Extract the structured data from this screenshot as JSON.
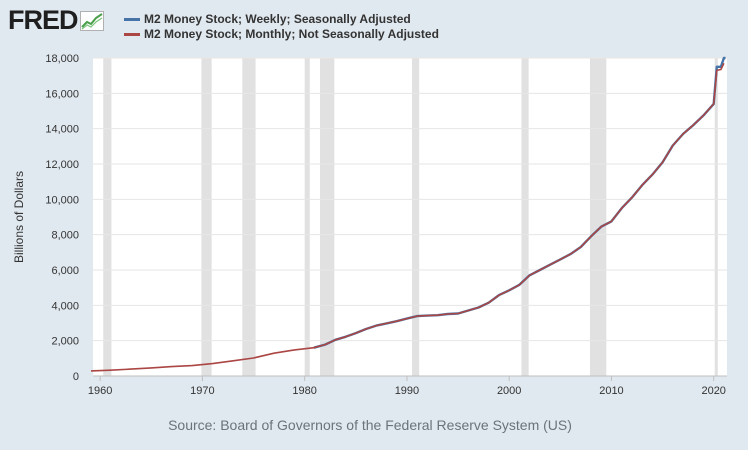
{
  "logo": {
    "text": "FRED",
    "icon": "trend-line-icon"
  },
  "chart_data": {
    "type": "line",
    "title": "",
    "xlabel": "",
    "ylabel": "Billions of Dollars",
    "xlim": [
      1959.3,
      2021.3
    ],
    "ylim": [
      0,
      18000
    ],
    "x_ticks": [
      1960,
      1970,
      1980,
      1990,
      2000,
      2010,
      2020
    ],
    "x_tick_labels": [
      "1960",
      "1970",
      "1980",
      "1990",
      "2000",
      "2010",
      "2020"
    ],
    "y_ticks": [
      0,
      2000,
      4000,
      6000,
      8000,
      10000,
      12000,
      14000,
      16000,
      18000
    ],
    "y_tick_labels": [
      "0",
      "2,000",
      "4,000",
      "6,000",
      "8,000",
      "10,000",
      "12,000",
      "14,000",
      "16,000",
      "18,000"
    ],
    "grid": true,
    "recessions": [
      [
        1960.3,
        1961.1
      ],
      [
        1969.9,
        1970.9
      ],
      [
        1973.9,
        1975.2
      ],
      [
        1980.0,
        1980.5
      ],
      [
        1981.5,
        1982.9
      ],
      [
        1990.5,
        1991.2
      ],
      [
        2001.2,
        2001.9
      ],
      [
        2007.9,
        2009.5
      ],
      [
        2020.1,
        2020.4
      ]
    ],
    "series": [
      {
        "name": "M2 Money Stock; Weekly; Seasonally Adjusted",
        "color": "#4572a7",
        "x": [
          1980.9,
          1982,
          1983,
          1984,
          1985,
          1986,
          1987,
          1988,
          1989,
          1990,
          1991,
          1992,
          1993,
          1994,
          1995,
          1996,
          1997,
          1998,
          1999,
          2000,
          2001,
          2002,
          2003,
          2004,
          2005,
          2006,
          2007,
          2008,
          2009,
          2010,
          2011,
          2012,
          2013,
          2014,
          2015,
          2016,
          2017,
          2018,
          2019,
          2020,
          2020.3,
          2020.7,
          2021,
          2021.15
        ],
        "y": [
          1600,
          1780,
          2050,
          2220,
          2430,
          2660,
          2850,
          2980,
          3100,
          3250,
          3390,
          3420,
          3440,
          3510,
          3540,
          3710,
          3880,
          4150,
          4580,
          4850,
          5160,
          5700,
          6000,
          6300,
          6600,
          6900,
          7300,
          7900,
          8450,
          8750,
          9500,
          10100,
          10800,
          11400,
          12100,
          13050,
          13700,
          14200,
          14750,
          15400,
          17500,
          17500,
          18100,
          18300
        ]
      },
      {
        "name": "M2 Money Stock; Monthly; Not Seasonally Adjusted",
        "color": "#aa4643",
        "x": [
          1959.1,
          1961,
          1963,
          1965,
          1967,
          1969,
          1971,
          1973,
          1975,
          1977,
          1979,
          1980.9,
          1982,
          1983,
          1984,
          1985,
          1986,
          1987,
          1988,
          1989,
          1990,
          1991,
          1992,
          1993,
          1994,
          1995,
          1996,
          1997,
          1998,
          1999,
          2000,
          2001,
          2002,
          2003,
          2004,
          2005,
          2006,
          2007,
          2008,
          2009,
          2010,
          2011,
          2012,
          2013,
          2014,
          2015,
          2016,
          2017,
          2018,
          2019,
          2020,
          2020.3,
          2020.7,
          2021
        ],
        "y": [
          290,
          330,
          390,
          460,
          530,
          590,
          700,
          860,
          1020,
          1290,
          1480,
          1600,
          1780,
          2050,
          2220,
          2430,
          2660,
          2850,
          2980,
          3100,
          3250,
          3390,
          3420,
          3440,
          3510,
          3540,
          3710,
          3880,
          4150,
          4580,
          4850,
          5160,
          5700,
          6000,
          6300,
          6600,
          6900,
          7300,
          7900,
          8450,
          8750,
          9500,
          10100,
          10800,
          11400,
          12100,
          13050,
          13700,
          14200,
          14750,
          15400,
          17300,
          17350,
          17700
        ]
      }
    ]
  },
  "source": "Source: Board of Governors of the Federal Reserve System (US)"
}
